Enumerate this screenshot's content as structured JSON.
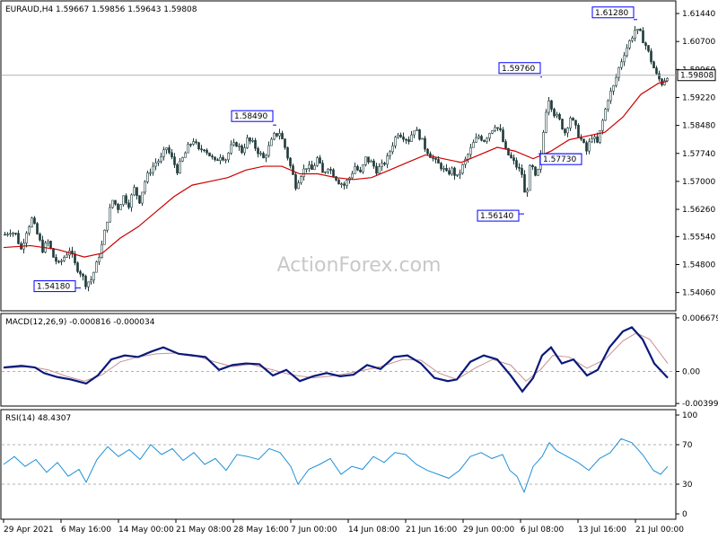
{
  "colors": {
    "background": "#ffffff",
    "frame": "#000000",
    "candle": "#1f3a3a",
    "ma_line": "#cc0000",
    "macd_line": "#0a1a7a",
    "macd_signal": "#c99090",
    "rsi_line": "#1e90d8",
    "level_line": "#b0b0b0",
    "annotation_border": "#0000ff"
  },
  "watermark": "ActionForex.com",
  "chart_data": [
    {
      "type": "candlestick",
      "title": "EURAUD,H4  1.59667 1.59856 1.59643 1.59808",
      "current_price_label": "1.59808",
      "current_price": 1.59808,
      "ylim": [
        1.536,
        1.6175
      ],
      "y_ticks": [
        "1.61440",
        "1.60700",
        "1.59960",
        "1.59220",
        "1.58480",
        "1.57740",
        "1.57000",
        "1.56260",
        "1.55540",
        "1.54800",
        "1.54060"
      ],
      "x_ticks": [
        "29 Apr 2021",
        "6 May 16:00",
        "14 May 00:00",
        "21 May 08:00",
        "28 May 16:00",
        "7 Jun 00:00",
        "14 Jun 08:00",
        "21 Jun 16:00",
        "29 Jun 00:00",
        "6 Jul 08:00",
        "13 Jul 16:00",
        "21 Jul 00:00"
      ],
      "annotations": [
        "1.61280",
        "1.59760",
        "1.58490",
        "1.57730",
        "1.56140",
        "1.54180"
      ],
      "close_path": [
        [
          0,
          1.556
        ],
        [
          6,
          1.557
        ],
        [
          12,
          1.556
        ],
        [
          18,
          1.552
        ],
        [
          24,
          1.557
        ],
        [
          30,
          1.56
        ],
        [
          36,
          1.556
        ],
        [
          42,
          1.552
        ],
        [
          48,
          1.554
        ],
        [
          54,
          1.55
        ],
        [
          60,
          1.548
        ],
        [
          66,
          1.55
        ],
        [
          72,
          1.552
        ],
        [
          78,
          1.548
        ],
        [
          84,
          1.546
        ],
        [
          90,
          1.543
        ],
        [
          96,
          1.544
        ],
        [
          102,
          1.548
        ],
        [
          108,
          1.553
        ],
        [
          114,
          1.56
        ],
        [
          120,
          1.565
        ],
        [
          126,
          1.563
        ],
        [
          132,
          1.566
        ],
        [
          138,
          1.564
        ],
        [
          144,
          1.568
        ],
        [
          150,
          1.565
        ],
        [
          156,
          1.57
        ],
        [
          162,
          1.573
        ],
        [
          168,
          1.575
        ],
        [
          174,
          1.576
        ],
        [
          180,
          1.579
        ],
        [
          186,
          1.576
        ],
        [
          192,
          1.573
        ],
        [
          198,
          1.576
        ],
        [
          204,
          1.579
        ],
        [
          210,
          1.581
        ],
        [
          216,
          1.578
        ],
        [
          222,
          1.579
        ],
        [
          228,
          1.577
        ],
        [
          234,
          1.575
        ],
        [
          240,
          1.577
        ],
        [
          246,
          1.576
        ],
        [
          252,
          1.579
        ],
        [
          258,
          1.58
        ],
        [
          264,
          1.578
        ],
        [
          270,
          1.581
        ],
        [
          276,
          1.58
        ],
        [
          282,
          1.578
        ],
        [
          288,
          1.576
        ],
        [
          294,
          1.579
        ],
        [
          300,
          1.582
        ],
        [
          306,
          1.583
        ],
        [
          312,
          1.579
        ],
        [
          318,
          1.574
        ],
        [
          324,
          1.569
        ],
        [
          330,
          1.572
        ],
        [
          336,
          1.574
        ],
        [
          342,
          1.573
        ],
        [
          348,
          1.576
        ],
        [
          354,
          1.572
        ],
        [
          360,
          1.574
        ],
        [
          366,
          1.572
        ],
        [
          372,
          1.57
        ],
        [
          378,
          1.569
        ],
        [
          384,
          1.571
        ],
        [
          390,
          1.574
        ],
        [
          396,
          1.572
        ],
        [
          402,
          1.576
        ],
        [
          408,
          1.575
        ],
        [
          414,
          1.573
        ],
        [
          420,
          1.574
        ],
        [
          426,
          1.576
        ],
        [
          432,
          1.58
        ],
        [
          438,
          1.583
        ],
        [
          444,
          1.582
        ],
        [
          450,
          1.581
        ],
        [
          456,
          1.584
        ],
        [
          462,
          1.582
        ],
        [
          468,
          1.579
        ],
        [
          474,
          1.577
        ],
        [
          480,
          1.575
        ],
        [
          486,
          1.574
        ],
        [
          492,
          1.572
        ],
        [
          498,
          1.573
        ],
        [
          504,
          1.571
        ],
        [
          510,
          1.574
        ],
        [
          516,
          1.577
        ],
        [
          522,
          1.58
        ],
        [
          528,
          1.582
        ],
        [
          534,
          1.581
        ],
        [
          540,
          1.583
        ],
        [
          546,
          1.585
        ],
        [
          552,
          1.583
        ],
        [
          558,
          1.578
        ],
        [
          564,
          1.576
        ],
        [
          570,
          1.574
        ],
        [
          576,
          1.572
        ],
        [
          580,
          1.565
        ],
        [
          586,
          1.575
        ],
        [
          592,
          1.57
        ],
        [
          598,
          1.578
        ],
        [
          602,
          1.588
        ],
        [
          606,
          1.592
        ],
        [
          612,
          1.588
        ],
        [
          618,
          1.586
        ],
        [
          624,
          1.583
        ],
        [
          630,
          1.587
        ],
        [
          636,
          1.584
        ],
        [
          642,
          1.581
        ],
        [
          648,
          1.578
        ],
        [
          654,
          1.582
        ],
        [
          660,
          1.58
        ],
        [
          666,
          1.586
        ],
        [
          672,
          1.592
        ],
        [
          678,
          1.595
        ],
        [
          684,
          1.6
        ],
        [
          690,
          1.604
        ],
        [
          696,
          1.607
        ],
        [
          702,
          1.61
        ],
        [
          708,
          1.609
        ],
        [
          714,
          1.606
        ],
        [
          720,
          1.602
        ],
        [
          726,
          1.598
        ],
        [
          732,
          1.596
        ],
        [
          738,
          1.5981
        ]
      ],
      "ma_path": [
        [
          0,
          1.5525
        ],
        [
          30,
          1.553
        ],
        [
          60,
          1.552
        ],
        [
          90,
          1.55
        ],
        [
          110,
          1.551
        ],
        [
          130,
          1.555
        ],
        [
          150,
          1.558
        ],
        [
          170,
          1.562
        ],
        [
          190,
          1.566
        ],
        [
          210,
          1.569
        ],
        [
          230,
          1.57
        ],
        [
          250,
          1.571
        ],
        [
          270,
          1.573
        ],
        [
          290,
          1.574
        ],
        [
          310,
          1.574
        ],
        [
          330,
          1.572
        ],
        [
          350,
          1.572
        ],
        [
          370,
          1.571
        ],
        [
          390,
          1.5705
        ],
        [
          410,
          1.571
        ],
        [
          430,
          1.573
        ],
        [
          450,
          1.575
        ],
        [
          470,
          1.577
        ],
        [
          490,
          1.576
        ],
        [
          510,
          1.575
        ],
        [
          530,
          1.577
        ],
        [
          550,
          1.579
        ],
        [
          570,
          1.578
        ],
        [
          590,
          1.576
        ],
        [
          610,
          1.578
        ],
        [
          630,
          1.581
        ],
        [
          650,
          1.582
        ],
        [
          670,
          1.583
        ],
        [
          690,
          1.587
        ],
        [
          710,
          1.593
        ],
        [
          730,
          1.596
        ],
        [
          740,
          1.5965
        ]
      ]
    },
    {
      "type": "line",
      "title": "MACD(12,26,9) -0.000816 -0.000034",
      "ylim": [
        -0.0042,
        0.007
      ],
      "y_ticks": [
        "0.006679",
        "0.00",
        "-0.003994"
      ],
      "macd_path": [
        [
          0,
          0.0005
        ],
        [
          20,
          0.0007
        ],
        [
          35,
          0.0005
        ],
        [
          45,
          -0.0002
        ],
        [
          60,
          -0.0007
        ],
        [
          75,
          -0.001
        ],
        [
          92,
          -0.0015
        ],
        [
          105,
          -0.0005
        ],
        [
          120,
          0.0015
        ],
        [
          135,
          0.002
        ],
        [
          150,
          0.0018
        ],
        [
          165,
          0.0025
        ],
        [
          178,
          0.003
        ],
        [
          195,
          0.0022
        ],
        [
          210,
          0.002
        ],
        [
          225,
          0.0018
        ],
        [
          240,
          0.0002
        ],
        [
          255,
          0.0008
        ],
        [
          270,
          0.001
        ],
        [
          285,
          0.0009
        ],
        [
          300,
          -0.0005
        ],
        [
          315,
          0.0002
        ],
        [
          330,
          -0.0012
        ],
        [
          345,
          -0.0006
        ],
        [
          360,
          -0.0002
        ],
        [
          375,
          -0.0006
        ],
        [
          390,
          -0.0004
        ],
        [
          405,
          0.0008
        ],
        [
          420,
          0.0003
        ],
        [
          435,
          0.0018
        ],
        [
          450,
          0.002
        ],
        [
          465,
          0.001
        ],
        [
          480,
          -0.0008
        ],
        [
          495,
          -0.0012
        ],
        [
          505,
          -0.001
        ],
        [
          520,
          0.0012
        ],
        [
          535,
          0.002
        ],
        [
          550,
          0.0015
        ],
        [
          565,
          -0.0005
        ],
        [
          578,
          -0.0025
        ],
        [
          590,
          -0.0008
        ],
        [
          600,
          0.002
        ],
        [
          610,
          0.003
        ],
        [
          622,
          0.001
        ],
        [
          635,
          0.0015
        ],
        [
          650,
          -0.0005
        ],
        [
          662,
          0.0002
        ],
        [
          675,
          0.003
        ],
        [
          690,
          0.005
        ],
        [
          700,
          0.0055
        ],
        [
          712,
          0.004
        ],
        [
          725,
          0.001
        ],
        [
          740,
          -0.0008
        ]
      ],
      "signal_path": [
        [
          0,
          0.0004
        ],
        [
          30,
          0.0006
        ],
        [
          50,
          0.0002
        ],
        [
          70,
          -0.0006
        ],
        [
          90,
          -0.0012
        ],
        [
          110,
          -0.0004
        ],
        [
          130,
          0.0012
        ],
        [
          150,
          0.0018
        ],
        [
          170,
          0.0022
        ],
        [
          190,
          0.0023
        ],
        [
          210,
          0.0021
        ],
        [
          235,
          0.0012
        ],
        [
          255,
          0.0006
        ],
        [
          275,
          0.0009
        ],
        [
          300,
          0.0002
        ],
        [
          320,
          -0.0004
        ],
        [
          345,
          -0.0008
        ],
        [
          370,
          -0.0005
        ],
        [
          395,
          0.0
        ],
        [
          420,
          0.0006
        ],
        [
          445,
          0.0015
        ],
        [
          465,
          0.0014
        ],
        [
          485,
          -0.0002
        ],
        [
          505,
          -0.001
        ],
        [
          525,
          0.0004
        ],
        [
          545,
          0.0015
        ],
        [
          565,
          0.0008
        ],
        [
          582,
          -0.0012
        ],
        [
          598,
          0.0002
        ],
        [
          612,
          0.002
        ],
        [
          630,
          0.0018
        ],
        [
          650,
          0.0004
        ],
        [
          670,
          0.0015
        ],
        [
          690,
          0.0038
        ],
        [
          705,
          0.0048
        ],
        [
          720,
          0.004
        ],
        [
          740,
          0.001
        ]
      ]
    },
    {
      "type": "line",
      "title": "RSI(14) 48.4307",
      "ylim": [
        0,
        100
      ],
      "y_ticks": [
        "100",
        "70",
        "30",
        "0"
      ],
      "levels": [
        70,
        30
      ],
      "rsi_path": [
        [
          0,
          50
        ],
        [
          12,
          58
        ],
        [
          24,
          48
        ],
        [
          36,
          55
        ],
        [
          48,
          42
        ],
        [
          60,
          52
        ],
        [
          72,
          38
        ],
        [
          84,
          45
        ],
        [
          92,
          32
        ],
        [
          104,
          55
        ],
        [
          116,
          68
        ],
        [
          128,
          58
        ],
        [
          140,
          65
        ],
        [
          152,
          55
        ],
        [
          164,
          70
        ],
        [
          176,
          60
        ],
        [
          188,
          66
        ],
        [
          200,
          54
        ],
        [
          212,
          62
        ],
        [
          224,
          50
        ],
        [
          236,
          56
        ],
        [
          248,
          44
        ],
        [
          260,
          60
        ],
        [
          272,
          58
        ],
        [
          284,
          55
        ],
        [
          296,
          66
        ],
        [
          308,
          62
        ],
        [
          320,
          48
        ],
        [
          328,
          30
        ],
        [
          340,
          45
        ],
        [
          352,
          50
        ],
        [
          364,
          56
        ],
        [
          376,
          40
        ],
        [
          388,
          48
        ],
        [
          400,
          45
        ],
        [
          412,
          58
        ],
        [
          424,
          52
        ],
        [
          436,
          62
        ],
        [
          448,
          60
        ],
        [
          460,
          50
        ],
        [
          472,
          44
        ],
        [
          484,
          40
        ],
        [
          496,
          36
        ],
        [
          508,
          44
        ],
        [
          520,
          58
        ],
        [
          532,
          62
        ],
        [
          544,
          56
        ],
        [
          556,
          60
        ],
        [
          564,
          44
        ],
        [
          572,
          38
        ],
        [
          580,
          22
        ],
        [
          590,
          48
        ],
        [
          600,
          58
        ],
        [
          608,
          72
        ],
        [
          616,
          64
        ],
        [
          628,
          58
        ],
        [
          640,
          52
        ],
        [
          652,
          44
        ],
        [
          664,
          56
        ],
        [
          676,
          62
        ],
        [
          688,
          76
        ],
        [
          700,
          72
        ],
        [
          712,
          60
        ],
        [
          724,
          44
        ],
        [
          732,
          40
        ],
        [
          740,
          48
        ]
      ]
    }
  ]
}
